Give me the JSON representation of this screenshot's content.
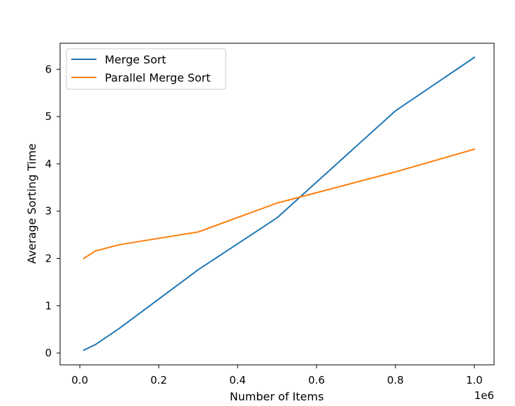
{
  "chart_data": {
    "type": "line",
    "title": "",
    "xlabel": "Number of Items",
    "ylabel": "Average Sorting Time",
    "x_offset_label": "1e6",
    "xlim": [
      -50000,
      1050000
    ],
    "ylim": [
      -0.25,
      6.55
    ],
    "grid": false,
    "legend_position": "top-left",
    "x_ticks": [
      0,
      200000,
      400000,
      600000,
      800000,
      1000000
    ],
    "x_tick_labels": [
      "0.0",
      "0.2",
      "0.4",
      "0.6",
      "0.8",
      "1.0"
    ],
    "y_ticks": [
      0,
      1,
      2,
      3,
      4,
      5,
      6
    ],
    "y_tick_labels": [
      "0",
      "1",
      "2",
      "3",
      "4",
      "5",
      "6"
    ],
    "series": [
      {
        "name": "Merge Sort",
        "color": "#1f77b4",
        "x": [
          10000,
          40000,
          100000,
          300000,
          500000,
          800000,
          1000000
        ],
        "y": [
          0.06,
          0.18,
          0.52,
          1.76,
          2.86,
          5.12,
          6.25
        ]
      },
      {
        "name": "Parallel Merge Sort",
        "color": "#ff7f0e",
        "x": [
          10000,
          40000,
          100000,
          300000,
          500000,
          800000,
          1000000
        ],
        "y": [
          2.0,
          2.16,
          2.29,
          2.56,
          3.17,
          3.83,
          4.31
        ]
      }
    ]
  }
}
